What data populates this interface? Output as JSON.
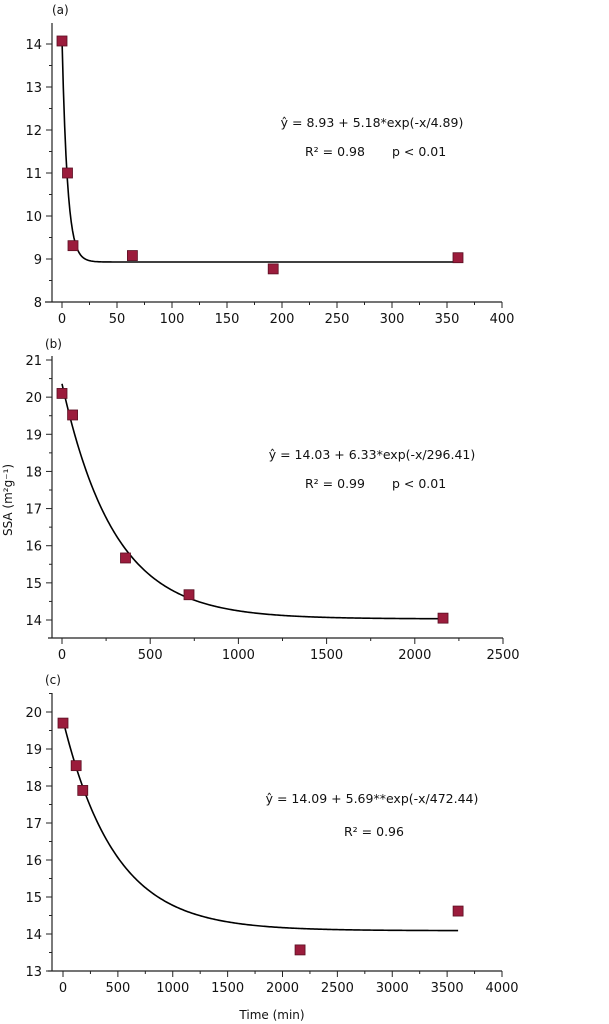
{
  "chart_data": [
    {
      "type": "scatter",
      "panel_label": "(a)",
      "xlim": [
        0,
        400
      ],
      "ylim": [
        8,
        14.5
      ],
      "xticks": [
        "0",
        "50",
        "100",
        "150",
        "200",
        "250",
        "300",
        "350",
        "400"
      ],
      "yticks": [
        "8",
        "9",
        "10",
        "11",
        "12",
        "13",
        "14"
      ],
      "points": [
        [
          0,
          14.07
        ],
        [
          5,
          11.0
        ],
        [
          10,
          9.31
        ],
        [
          64,
          9.08
        ],
        [
          192,
          8.77
        ],
        [
          360,
          9.03
        ]
      ],
      "fit": {
        "a": 8.93,
        "b": 5.18,
        "tau": 4.89,
        "xmax": 360
      },
      "equation": "ŷ = 8.93 + 5.18*exp(-x/4.89)",
      "r2": "R² =  0.98",
      "p": "p < 0.01"
    },
    {
      "type": "scatter",
      "panel_label": "(b)",
      "xlim": [
        0,
        2500
      ],
      "ylim": [
        13.5,
        21
      ],
      "xticks": [
        "0",
        "500",
        "1000",
        "1500",
        "2000",
        "2500"
      ],
      "yticks": [
        "14",
        "15",
        "16",
        "17",
        "18",
        "19",
        "20",
        "21"
      ],
      "points": [
        [
          0,
          20.1
        ],
        [
          60,
          19.52
        ],
        [
          360,
          15.67
        ],
        [
          720,
          14.68
        ],
        [
          2160,
          14.05
        ]
      ],
      "fit": {
        "a": 14.03,
        "b": 6.33,
        "tau": 296.41,
        "xmax": 2160
      },
      "equation": "ŷ = 14.03 + 6.33*exp(-x/296.41)",
      "r2": "R² =  0.99",
      "p": "p < 0.01"
    },
    {
      "type": "scatter",
      "panel_label": "(c)",
      "xlim": [
        0,
        4000
      ],
      "ylim": [
        13,
        20.5
      ],
      "xticks": [
        "0",
        "500",
        "1000",
        "1500",
        "2000",
        "2500",
        "3000",
        "3500",
        "4000"
      ],
      "yticks": [
        "13",
        "14",
        "15",
        "16",
        "17",
        "18",
        "19",
        "20"
      ],
      "points": [
        [
          0,
          19.7
        ],
        [
          120,
          18.55
        ],
        [
          180,
          17.88
        ],
        [
          2160,
          13.57
        ],
        [
          3600,
          14.62
        ]
      ],
      "fit": {
        "a": 14.09,
        "b": 5.69,
        "tau": 472.44,
        "xmax": 3600
      },
      "equation": "ŷ = 14.09 + 5.69**exp(-x/472.44)",
      "r2": "R² =  0.96",
      "p": ""
    }
  ],
  "ylabel": "SSA (m²g⁻¹)",
  "xlabel": "Time (min)",
  "colors": {
    "marker": "#9b1c3c",
    "marker_edge": "#5a0f22",
    "line": "#000000"
  }
}
